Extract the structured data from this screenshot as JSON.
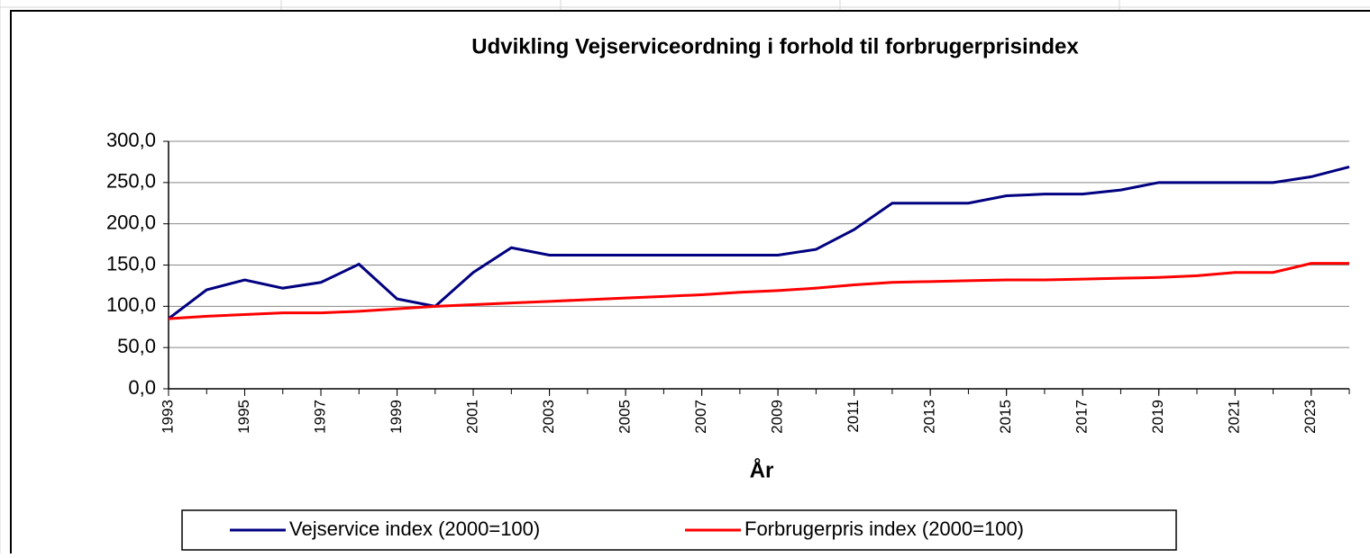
{
  "chart_data": {
    "type": "line",
    "title": "Udvikling Vejserviceordning i forhold til forbrugerprisindex",
    "x_label": "År",
    "x": [
      1993,
      1994,
      1995,
      1996,
      1997,
      1998,
      1999,
      2000,
      2001,
      2002,
      2003,
      2004,
      2005,
      2006,
      2007,
      2008,
      2009,
      2010,
      2011,
      2012,
      2013,
      2014,
      2015,
      2016,
      2017,
      2018,
      2019,
      2020,
      2021,
      2022,
      2023,
      2024
    ],
    "xlim": [
      1993,
      2024
    ],
    "xticks": [
      1993,
      1995,
      1997,
      1999,
      2001,
      2003,
      2005,
      2007,
      2009,
      2011,
      2013,
      2015,
      2017,
      2019,
      2021,
      2023
    ],
    "ylim": [
      0,
      300
    ],
    "yticks": [
      {
        "value": 0,
        "label": "0,0"
      },
      {
        "value": 50,
        "label": "50,0"
      },
      {
        "value": 100,
        "label": "100,0"
      },
      {
        "value": 150,
        "label": "150,0"
      },
      {
        "value": 200,
        "label": "200,0"
      },
      {
        "value": 250,
        "label": "250,0"
      },
      {
        "value": 300,
        "label": "300,0"
      }
    ],
    "grid": true,
    "legend": "bottom",
    "series": [
      {
        "name": "Vejservice index (2000=100)",
        "color": "#000080",
        "values": [
          85,
          120,
          132,
          122,
          129,
          151,
          109,
          100,
          141,
          171,
          162,
          162,
          162,
          162,
          162,
          162,
          162,
          169,
          193,
          225,
          225,
          225,
          234,
          236,
          236,
          241,
          250,
          250,
          250,
          250,
          257,
          269
        ]
      },
      {
        "name": "Forbrugerpris index (2000=100)",
        "color": "#ff0000",
        "values": [
          85,
          88,
          90,
          92,
          92,
          94,
          97,
          100,
          102,
          104,
          106,
          108,
          110,
          112,
          114,
          117,
          119,
          122,
          126,
          129,
          130,
          131,
          132,
          132,
          133,
          134,
          135,
          137,
          141,
          141,
          152,
          152
        ]
      }
    ]
  }
}
